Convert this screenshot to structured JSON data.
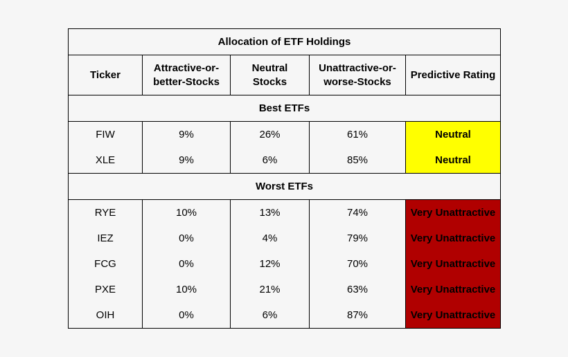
{
  "table": {
    "title": "Allocation of ETF Holdings",
    "headers": [
      "Ticker",
      "Attractive-or-better-Stocks",
      "Neutral Stocks",
      "Unattractive-or-worse-Stocks",
      "Predictive Rating"
    ],
    "sections": [
      {
        "label": "Best ETFs",
        "rows": [
          {
            "ticker": "FIW",
            "attractive": "9%",
            "neutral": "26%",
            "unattractive": "61%",
            "rating": "Neutral"
          },
          {
            "ticker": "XLE",
            "attractive": "9%",
            "neutral": "6%",
            "unattractive": "85%",
            "rating": "Neutral"
          }
        ]
      },
      {
        "label": "Worst ETFs",
        "rows": [
          {
            "ticker": "RYE",
            "attractive": "10%",
            "neutral": "13%",
            "unattractive": "74%",
            "rating": "Very Unattractive"
          },
          {
            "ticker": "IEZ",
            "attractive": "0%",
            "neutral": "4%",
            "unattractive": "79%",
            "rating": "Very Unattractive"
          },
          {
            "ticker": "FCG",
            "attractive": "0%",
            "neutral": "12%",
            "unattractive": "70%",
            "rating": "Very Unattractive"
          },
          {
            "ticker": "PXE",
            "attractive": "10%",
            "neutral": "21%",
            "unattractive": "63%",
            "rating": "Very Unattractive"
          },
          {
            "ticker": "OIH",
            "attractive": "0%",
            "neutral": "6%",
            "unattractive": "87%",
            "rating": "Very Unattractive"
          }
        ]
      }
    ]
  },
  "colors": {
    "neutral_rating": "#ffff00",
    "very_unattractive_rating": "#b00000",
    "background": "#f6f6f6"
  }
}
